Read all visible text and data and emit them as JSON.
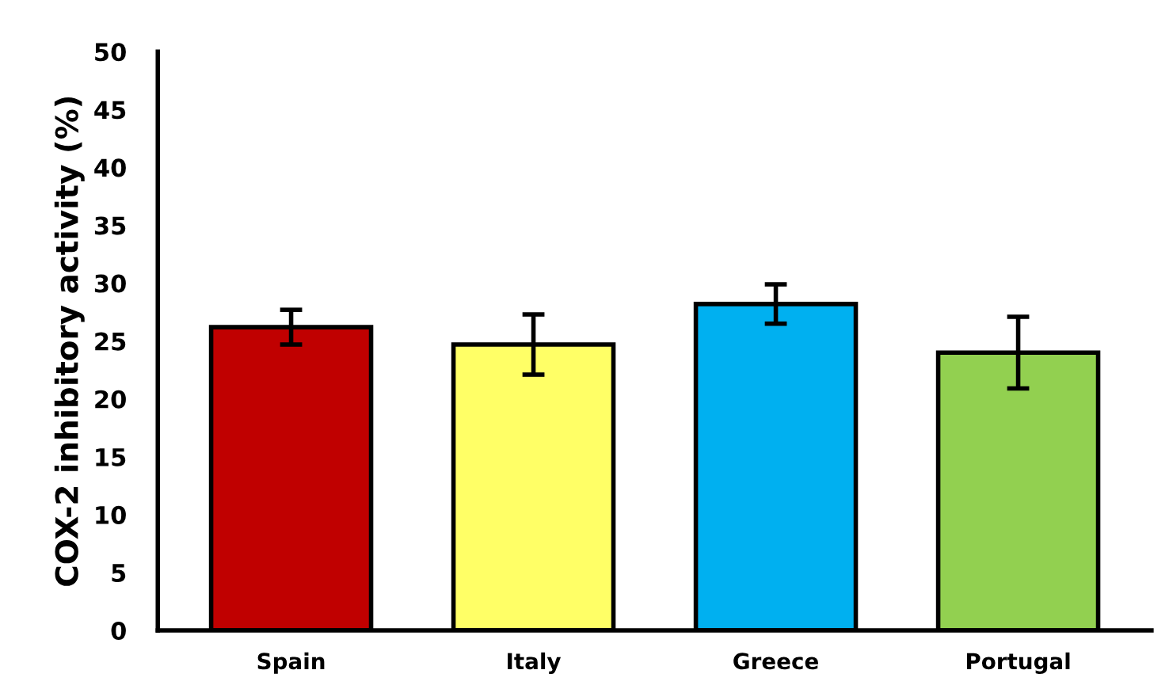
{
  "chart_data": {
    "type": "bar",
    "ylabel": "COX-2 inhibitory activity (%)",
    "categories": [
      "Spain",
      "Italy",
      "Greece",
      "Portugal"
    ],
    "values": [
      26.2,
      24.7,
      28.2,
      24.0
    ],
    "errors": [
      1.5,
      2.6,
      1.7,
      3.1
    ],
    "colors": [
      "#c00000",
      "#ffff66",
      "#00b0f0",
      "#92d050"
    ],
    "ylim": [
      0,
      50
    ],
    "yticks": [
      0,
      5,
      10,
      15,
      20,
      25,
      30,
      35,
      40,
      45,
      50
    ],
    "grid": false,
    "legend": false
  }
}
